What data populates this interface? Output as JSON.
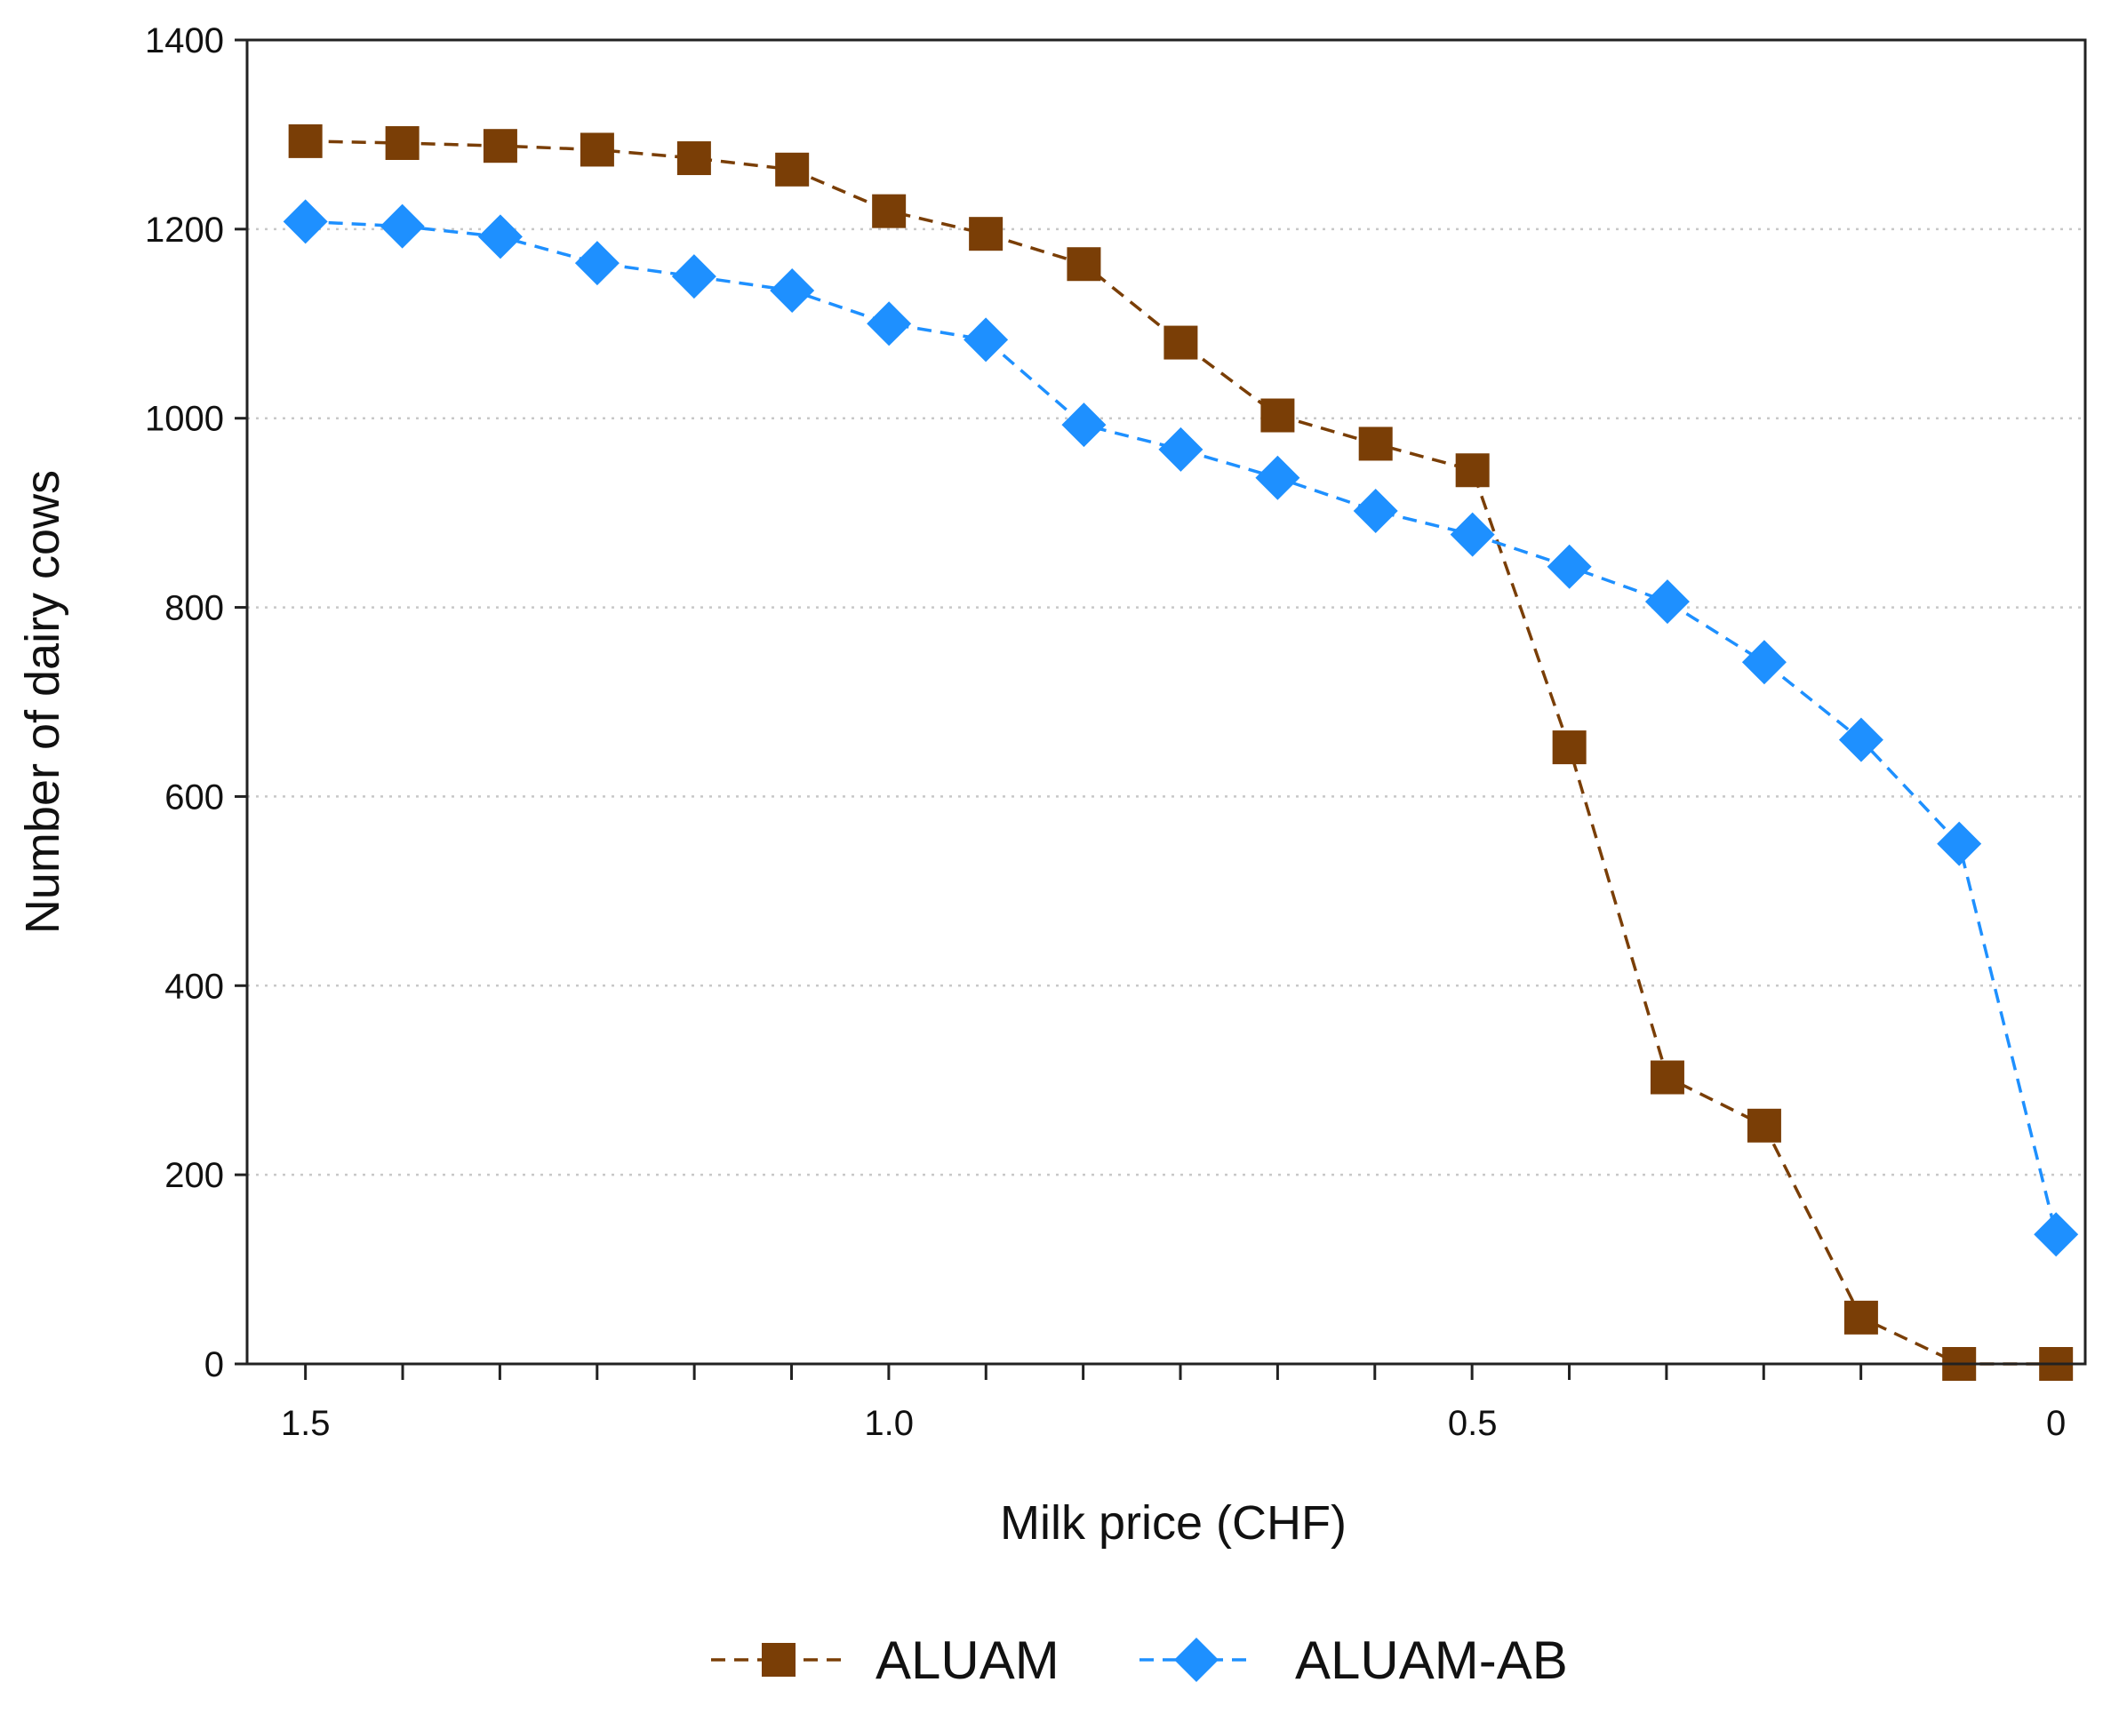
{
  "chart_data": {
    "type": "line",
    "title": "",
    "xlabel": "Milk price (CHF)",
    "ylabel": "Number of dairy cows",
    "x_reversed": true,
    "xlim": [
      1.55,
      -0.025
    ],
    "ylim": [
      0,
      1400
    ],
    "x_ticks": [
      1.5,
      1.0,
      0.5,
      0
    ],
    "x_tick_labels": [
      "1.5",
      "1.0",
      "0.5",
      "0"
    ],
    "x_minor_step": 0.0833,
    "y_ticks": [
      0,
      200,
      400,
      600,
      800,
      1000,
      1200,
      1400
    ],
    "y_tick_labels": [
      "0",
      "200",
      "400",
      "600",
      "800",
      "1000",
      "1200",
      "1400"
    ],
    "grid": "horizontal dotted",
    "legend_position": "bottom-center",
    "series": [
      {
        "name": "ALUAM",
        "color": "#7a3e06",
        "marker": "square",
        "line_style": "dashed",
        "x": [
          1.5,
          1.417,
          1.333,
          1.25,
          1.167,
          1.083,
          1.0,
          0.917,
          0.833,
          0.75,
          0.667,
          0.583,
          0.5,
          0.417,
          0.333,
          0.25,
          0.167,
          0.083,
          0.0
        ],
        "y": [
          1293,
          1291,
          1288,
          1284,
          1275,
          1263,
          1219,
          1195,
          1163,
          1080,
          1003,
          973,
          945,
          652,
          303,
          252,
          49,
          0,
          0
        ]
      },
      {
        "name": "ALUAM-AB",
        "color": "#1e90ff",
        "marker": "diamond",
        "line_style": "dashed",
        "x": [
          1.5,
          1.417,
          1.333,
          1.25,
          1.167,
          1.083,
          1.0,
          0.917,
          0.833,
          0.75,
          0.667,
          0.583,
          0.5,
          0.417,
          0.333,
          0.25,
          0.167,
          0.083,
          0.0
        ],
        "y": [
          1208,
          1203,
          1192,
          1164,
          1150,
          1135,
          1100,
          1083,
          993,
          967,
          937,
          902,
          877,
          843,
          806,
          742,
          660,
          550,
          137
        ]
      }
    ]
  }
}
